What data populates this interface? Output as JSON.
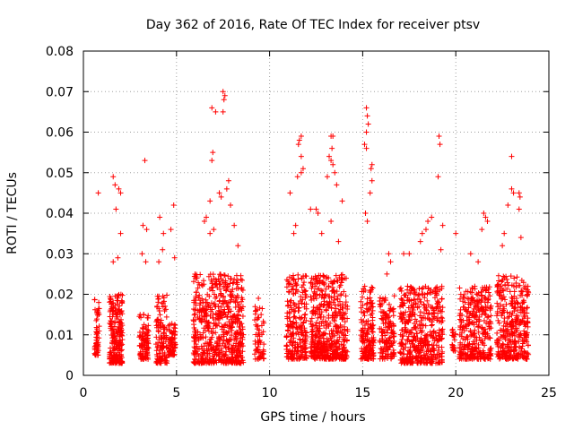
{
  "chart_data": {
    "type": "scatter",
    "title": "Day 362 of 2016, Rate Of TEC Index for receiver ptsv",
    "xlabel": "GPS time / hours",
    "ylabel": "ROTI / TECUs",
    "xlim": [
      0,
      25
    ],
    "ylim": [
      0,
      0.08
    ],
    "xticks": [
      0,
      5,
      10,
      15,
      20,
      25
    ],
    "yticks": [
      0,
      0.01,
      0.02,
      0.03,
      0.04,
      0.05,
      0.06,
      0.07,
      0.08
    ],
    "xtick_labels": [
      "0",
      "5",
      "10",
      "15",
      "20",
      "25"
    ],
    "ytick_labels": [
      "0",
      "0.01",
      "0.02",
      "0.03",
      "0.04",
      "0.05",
      "0.06",
      "0.07",
      "0.08"
    ],
    "grid": true,
    "marker": "+",
    "color": "#ff0000",
    "series": [
      {
        "name": "ROTI",
        "clusters": [
          {
            "x": [
              0.6,
              0.85
            ],
            "ylow": [
              0.005,
              0.019
            ],
            "n": 55,
            "spikes": [
              [
                0.8,
                0.045
              ]
            ]
          },
          {
            "x": [
              1.4,
              2.1
            ],
            "ylow": [
              0.003,
              0.02
            ],
            "n": 230,
            "spikes": [
              [
                1.6,
                0.049
              ],
              [
                1.7,
                0.047
              ],
              [
                1.9,
                0.046
              ],
              [
                2.0,
                0.045
              ],
              [
                1.75,
                0.041
              ],
              [
                2.0,
                0.035
              ],
              [
                1.85,
                0.029
              ],
              [
                1.6,
                0.028
              ]
            ]
          },
          {
            "x": [
              3.0,
              3.5
            ],
            "ylow": [
              0.004,
              0.015
            ],
            "n": 95,
            "spikes": [
              [
                3.3,
                0.053
              ],
              [
                3.2,
                0.037
              ],
              [
                3.4,
                0.036
              ],
              [
                3.15,
                0.03
              ],
              [
                3.35,
                0.028
              ]
            ]
          },
          {
            "x": [
              3.9,
              4.5
            ],
            "ylow": [
              0.003,
              0.02
            ],
            "n": 120,
            "spikes": [
              [
                4.1,
                0.039
              ],
              [
                4.3,
                0.035
              ],
              [
                4.25,
                0.031
              ],
              [
                4.05,
                0.028
              ]
            ]
          },
          {
            "x": [
              4.55,
              4.95
            ],
            "ylow": [
              0.005,
              0.013
            ],
            "n": 70,
            "spikes": [
              [
                4.85,
                0.042
              ],
              [
                4.7,
                0.036
              ],
              [
                4.9,
                0.029
              ]
            ]
          },
          {
            "x": [
              5.9,
              8.6
            ],
            "ylow": [
              0.003,
              0.025
            ],
            "n": 620,
            "spikes": [
              [
                7.5,
                0.07
              ],
              [
                7.6,
                0.069
              ],
              [
                7.55,
                0.068
              ],
              [
                7.5,
                0.065
              ],
              [
                6.9,
                0.066
              ],
              [
                7.1,
                0.065
              ],
              [
                6.95,
                0.055
              ],
              [
                6.9,
                0.053
              ],
              [
                7.8,
                0.048
              ],
              [
                7.7,
                0.046
              ],
              [
                7.3,
                0.045
              ],
              [
                7.4,
                0.044
              ],
              [
                6.8,
                0.043
              ],
              [
                7.9,
                0.042
              ],
              [
                6.6,
                0.039
              ],
              [
                6.5,
                0.038
              ],
              [
                8.1,
                0.037
              ],
              [
                8.3,
                0.032
              ],
              [
                6.8,
                0.035
              ],
              [
                7.0,
                0.036
              ]
            ]
          },
          {
            "x": [
              9.2,
              9.7
            ],
            "ylow": [
              0.004,
              0.017
            ],
            "n": 60,
            "spikes": [
              [
                9.4,
                0.019
              ]
            ]
          },
          {
            "x": [
              10.9,
              12.0
            ],
            "ylow": [
              0.004,
              0.025
            ],
            "n": 230,
            "spikes": [
              [
                11.1,
                0.045
              ],
              [
                11.7,
                0.059
              ],
              [
                11.6,
                0.058
              ],
              [
                11.55,
                0.057
              ],
              [
                11.7,
                0.054
              ],
              [
                11.8,
                0.051
              ],
              [
                11.7,
                0.05
              ],
              [
                11.5,
                0.049
              ],
              [
                11.4,
                0.037
              ],
              [
                11.3,
                0.035
              ]
            ]
          },
          {
            "x": [
              12.2,
              14.2
            ],
            "ylow": [
              0.004,
              0.025
            ],
            "n": 480,
            "spikes": [
              [
                13.3,
                0.059
              ],
              [
                13.4,
                0.059
              ],
              [
                13.35,
                0.056
              ],
              [
                13.2,
                0.054
              ],
              [
                13.3,
                0.053
              ],
              [
                13.4,
                0.052
              ],
              [
                13.5,
                0.05
              ],
              [
                13.1,
                0.049
              ],
              [
                13.6,
                0.047
              ],
              [
                12.5,
                0.041
              ],
              [
                12.6,
                0.04
              ],
              [
                12.2,
                0.041
              ],
              [
                13.9,
                0.043
              ],
              [
                13.3,
                0.038
              ],
              [
                12.8,
                0.035
              ],
              [
                13.7,
                0.033
              ]
            ]
          },
          {
            "x": [
              14.9,
              15.6
            ],
            "ylow": [
              0.004,
              0.022
            ],
            "n": 170,
            "spikes": [
              [
                15.2,
                0.066
              ],
              [
                15.25,
                0.064
              ],
              [
                15.3,
                0.062
              ],
              [
                15.2,
                0.06
              ],
              [
                15.1,
                0.057
              ],
              [
                15.2,
                0.056
              ],
              [
                15.5,
                0.052
              ],
              [
                15.45,
                0.051
              ],
              [
                15.5,
                0.048
              ],
              [
                15.4,
                0.045
              ],
              [
                15.15,
                0.04
              ],
              [
                15.25,
                0.038
              ]
            ]
          },
          {
            "x": [
              15.9,
              16.7
            ],
            "ylow": [
              0.004,
              0.02
            ],
            "n": 140,
            "spikes": [
              [
                16.4,
                0.03
              ],
              [
                16.5,
                0.028
              ],
              [
                16.3,
                0.025
              ]
            ]
          },
          {
            "x": [
              17.0,
              19.3
            ],
            "ylow": [
              0.003,
              0.022
            ],
            "n": 460,
            "spikes": [
              [
                18.7,
                0.039
              ],
              [
                18.5,
                0.038
              ],
              [
                18.4,
                0.036
              ],
              [
                18.2,
                0.035
              ],
              [
                18.1,
                0.033
              ],
              [
                17.2,
                0.03
              ],
              [
                17.5,
                0.03
              ],
              [
                19.1,
                0.059
              ],
              [
                19.15,
                0.057
              ],
              [
                19.05,
                0.049
              ],
              [
                19.3,
                0.037
              ],
              [
                19.2,
                0.031
              ]
            ]
          },
          {
            "x": [
              19.8,
              20.0
            ],
            "ylow": [
              0.006,
              0.012
            ],
            "n": 20,
            "spikes": [
              [
                20.0,
                0.035
              ]
            ]
          },
          {
            "x": [
              20.2,
              21.9
            ],
            "ylow": [
              0.004,
              0.022
            ],
            "n": 330,
            "spikes": [
              [
                21.5,
                0.04
              ],
              [
                21.6,
                0.039
              ],
              [
                21.7,
                0.038
              ],
              [
                21.4,
                0.036
              ],
              [
                20.8,
                0.03
              ],
              [
                21.2,
                0.028
              ]
            ]
          },
          {
            "x": [
              22.2,
              23.9
            ],
            "ylow": [
              0.004,
              0.025
            ],
            "n": 360,
            "spikes": [
              [
                23.0,
                0.054
              ],
              [
                23.0,
                0.046
              ],
              [
                23.1,
                0.045
              ],
              [
                23.4,
                0.045
              ],
              [
                23.45,
                0.044
              ],
              [
                22.8,
                0.042
              ],
              [
                23.4,
                0.041
              ],
              [
                22.6,
                0.035
              ],
              [
                23.5,
                0.034
              ],
              [
                22.5,
                0.032
              ]
            ]
          }
        ]
      }
    ]
  }
}
